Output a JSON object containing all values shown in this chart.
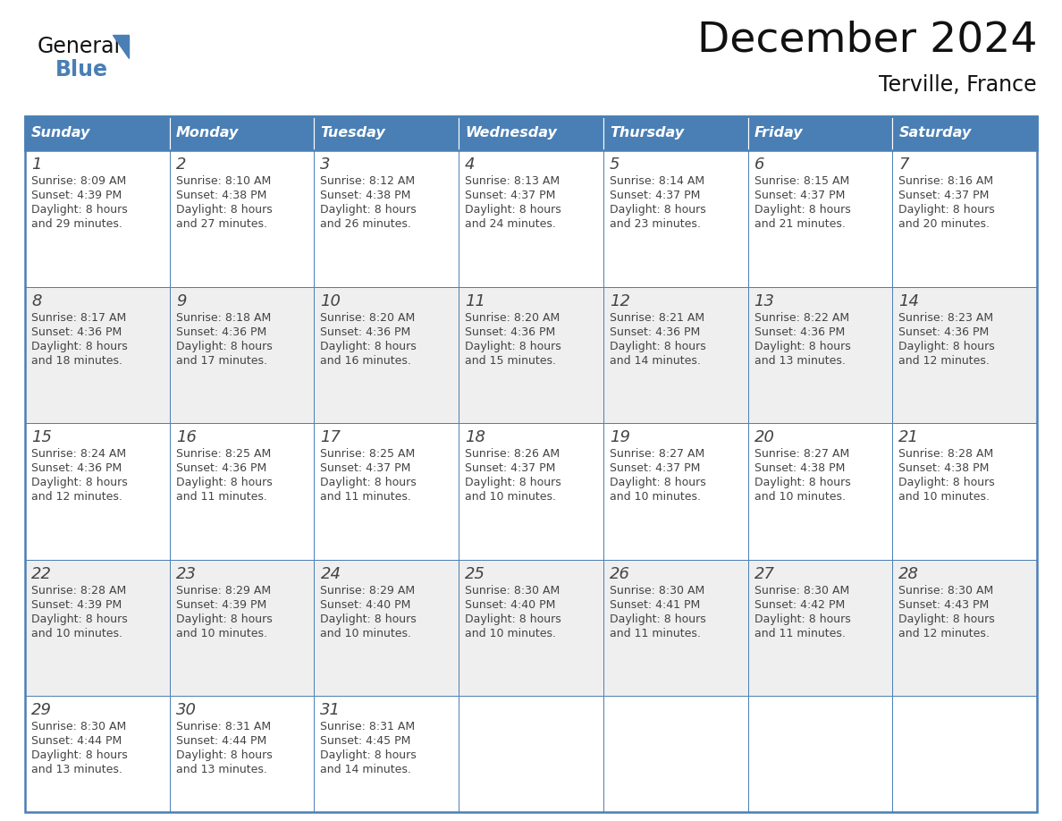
{
  "title": "December 2024",
  "subtitle": "Terville, France",
  "days_of_week": [
    "Sunday",
    "Monday",
    "Tuesday",
    "Wednesday",
    "Thursday",
    "Friday",
    "Saturday"
  ],
  "header_bg": "#4A7FB5",
  "header_text": "#FFFFFF",
  "row_bg_light": "#FFFFFF",
  "row_bg_dark": "#EFEFEF",
  "cell_border": "#4A7FB5",
  "day_num_color": "#444444",
  "text_color": "#444444",
  "calendar_data": [
    [
      {
        "day": 1,
        "sunrise": "8:09 AM",
        "sunset": "4:39 PM",
        "daylight": "8 hours\nand 29 minutes."
      },
      {
        "day": 2,
        "sunrise": "8:10 AM",
        "sunset": "4:38 PM",
        "daylight": "8 hours\nand 27 minutes."
      },
      {
        "day": 3,
        "sunrise": "8:12 AM",
        "sunset": "4:38 PM",
        "daylight": "8 hours\nand 26 minutes."
      },
      {
        "day": 4,
        "sunrise": "8:13 AM",
        "sunset": "4:37 PM",
        "daylight": "8 hours\nand 24 minutes."
      },
      {
        "day": 5,
        "sunrise": "8:14 AM",
        "sunset": "4:37 PM",
        "daylight": "8 hours\nand 23 minutes."
      },
      {
        "day": 6,
        "sunrise": "8:15 AM",
        "sunset": "4:37 PM",
        "daylight": "8 hours\nand 21 minutes."
      },
      {
        "day": 7,
        "sunrise": "8:16 AM",
        "sunset": "4:37 PM",
        "daylight": "8 hours\nand 20 minutes."
      }
    ],
    [
      {
        "day": 8,
        "sunrise": "8:17 AM",
        "sunset": "4:36 PM",
        "daylight": "8 hours\nand 18 minutes."
      },
      {
        "day": 9,
        "sunrise": "8:18 AM",
        "sunset": "4:36 PM",
        "daylight": "8 hours\nand 17 minutes."
      },
      {
        "day": 10,
        "sunrise": "8:20 AM",
        "sunset": "4:36 PM",
        "daylight": "8 hours\nand 16 minutes."
      },
      {
        "day": 11,
        "sunrise": "8:20 AM",
        "sunset": "4:36 PM",
        "daylight": "8 hours\nand 15 minutes."
      },
      {
        "day": 12,
        "sunrise": "8:21 AM",
        "sunset": "4:36 PM",
        "daylight": "8 hours\nand 14 minutes."
      },
      {
        "day": 13,
        "sunrise": "8:22 AM",
        "sunset": "4:36 PM",
        "daylight": "8 hours\nand 13 minutes."
      },
      {
        "day": 14,
        "sunrise": "8:23 AM",
        "sunset": "4:36 PM",
        "daylight": "8 hours\nand 12 minutes."
      }
    ],
    [
      {
        "day": 15,
        "sunrise": "8:24 AM",
        "sunset": "4:36 PM",
        "daylight": "8 hours\nand 12 minutes."
      },
      {
        "day": 16,
        "sunrise": "8:25 AM",
        "sunset": "4:36 PM",
        "daylight": "8 hours\nand 11 minutes."
      },
      {
        "day": 17,
        "sunrise": "8:25 AM",
        "sunset": "4:37 PM",
        "daylight": "8 hours\nand 11 minutes."
      },
      {
        "day": 18,
        "sunrise": "8:26 AM",
        "sunset": "4:37 PM",
        "daylight": "8 hours\nand 10 minutes."
      },
      {
        "day": 19,
        "sunrise": "8:27 AM",
        "sunset": "4:37 PM",
        "daylight": "8 hours\nand 10 minutes."
      },
      {
        "day": 20,
        "sunrise": "8:27 AM",
        "sunset": "4:38 PM",
        "daylight": "8 hours\nand 10 minutes."
      },
      {
        "day": 21,
        "sunrise": "8:28 AM",
        "sunset": "4:38 PM",
        "daylight": "8 hours\nand 10 minutes."
      }
    ],
    [
      {
        "day": 22,
        "sunrise": "8:28 AM",
        "sunset": "4:39 PM",
        "daylight": "8 hours\nand 10 minutes."
      },
      {
        "day": 23,
        "sunrise": "8:29 AM",
        "sunset": "4:39 PM",
        "daylight": "8 hours\nand 10 minutes."
      },
      {
        "day": 24,
        "sunrise": "8:29 AM",
        "sunset": "4:40 PM",
        "daylight": "8 hours\nand 10 minutes."
      },
      {
        "day": 25,
        "sunrise": "8:30 AM",
        "sunset": "4:40 PM",
        "daylight": "8 hours\nand 10 minutes."
      },
      {
        "day": 26,
        "sunrise": "8:30 AM",
        "sunset": "4:41 PM",
        "daylight": "8 hours\nand 11 minutes."
      },
      {
        "day": 27,
        "sunrise": "8:30 AM",
        "sunset": "4:42 PM",
        "daylight": "8 hours\nand 11 minutes."
      },
      {
        "day": 28,
        "sunrise": "8:30 AM",
        "sunset": "4:43 PM",
        "daylight": "8 hours\nand 12 minutes."
      }
    ],
    [
      {
        "day": 29,
        "sunrise": "8:30 AM",
        "sunset": "4:44 PM",
        "daylight": "8 hours\nand 13 minutes."
      },
      {
        "day": 30,
        "sunrise": "8:31 AM",
        "sunset": "4:44 PM",
        "daylight": "8 hours\nand 13 minutes."
      },
      {
        "day": 31,
        "sunrise": "8:31 AM",
        "sunset": "4:45 PM",
        "daylight": "8 hours\nand 14 minutes."
      },
      null,
      null,
      null,
      null
    ]
  ],
  "fig_width": 11.88,
  "fig_height": 9.18,
  "dpi": 100
}
